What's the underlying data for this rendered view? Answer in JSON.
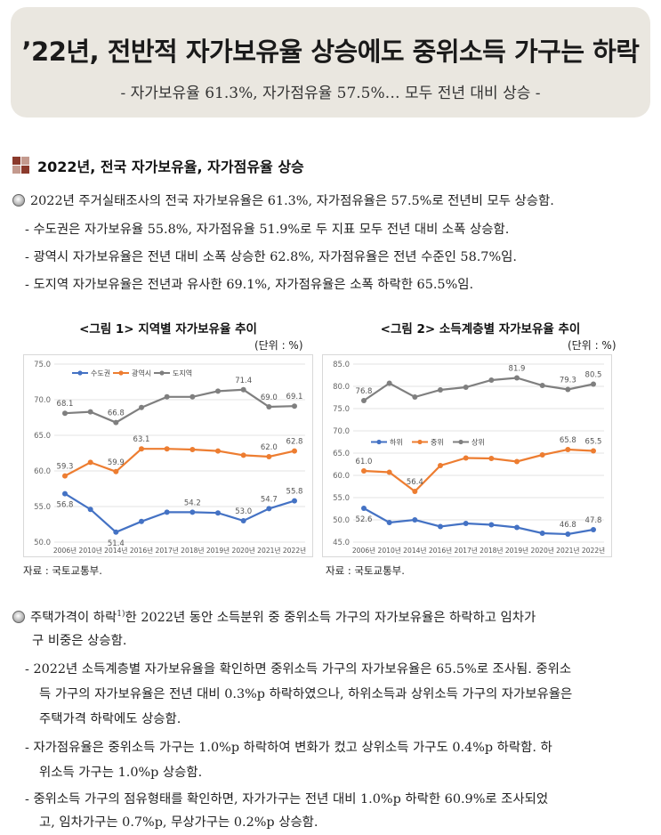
{
  "header": {
    "title": "’22년, 전반적 자가보유율 상승에도 중위소득 가구는 하락",
    "subtitle": "- 자가보유율 61.3%, 자가점유율 57.5%… 모두 전년 대비 상승 -"
  },
  "section1": {
    "title": "2022년, 전국 자가보유율, 자가점유율 상승",
    "bullet": "2022년 주거실태조사의 전국 자가보유율은 61.3%, 자가점유율은 57.5%로 전년비 모두 상승함.",
    "items": [
      "수도권은 자가보유율 55.8%, 자가점유율 51.9%로 두 지표 모두 전년 대비 소폭 상승함.",
      "광역시 자가보유율은 전년 대비 소폭 상승한 62.8%, 자가점유율은 전년 수준인 58.7%임.",
      "도지역 자가보유율은 전년과 유사한 69.1%, 자가점유율은 소폭 하락한 65.5%임."
    ]
  },
  "chart1": {
    "heading": "<그림 1> 지역별 자가보유율 추이",
    "unit": "(단위 : %)",
    "source": "자료 : 국토교통부."
  },
  "chart2": {
    "heading": "<그림 2> 소득계층별 자가보유율 추이",
    "unit": "(단위 : %)",
    "source": "자료 : 국토교통부."
  },
  "section2": {
    "bullet_line1_a": "주택가격이 하락",
    "bullet_footnote": "1)",
    "bullet_line1_b": "한 2022년 동안 소득분위 중 중위소득 가구의 자가보유율은 하락하고 임차가",
    "bullet_line2": "구 비중은 상승함.",
    "item1_line1": "2022년 소득계층별 자가보유율을 확인하면 중위소득 가구의 자가보유율은 65.5%로 조사됨. 중위소",
    "item1_line2": "득 가구의 자가보유율은 전년 대비 0.3%p 하락하였으나, 하위소득과 상위소득 가구의 자가보유율은",
    "item1_line3": "주택가격 하락에도 상승함.",
    "item2_line1": "자가점유율은 중위소득 가구는 1.0%p 하락하여 변화가 컸고 상위소득 가구도 0.4%p 하락함. 하",
    "item2_line2": "위소득 가구는 1.0%p 상승함.",
    "item3_line1": "중위소득 가구의 점유형태를 확인하면, 자가가구는 전년 대비 1.0%p 하락한 60.9%로 조사되었",
    "item3_line2": "고, 임차가구는 0.7%p, 무상가구는 0.2%p 상승함."
  },
  "chart_data": [
    {
      "type": "line",
      "title": "<그림 1> 지역별 자가보유율 추이",
      "unit": "(단위 : %)",
      "categories": [
        "2006년",
        "2010년",
        "2014년",
        "2016년",
        "2017년",
        "2018년",
        "2019년",
        "2020년",
        "2021년",
        "2022년"
      ],
      "ylim": [
        50.0,
        75.0
      ],
      "yticks": [
        "50.0",
        "55.0",
        "60.0",
        "65.0",
        "70.0",
        "75.0"
      ],
      "grid": true,
      "legend": "top-left",
      "series": [
        {
          "name": "수도권",
          "color": "#4472c4",
          "values": [
            56.8,
            54.6,
            51.4,
            52.9,
            54.2,
            54.2,
            54.1,
            53.0,
            54.7,
            55.8
          ],
          "labels": {
            "0": "56.8",
            "2": "51.4",
            "5": "54.2",
            "7": "53.0",
            "8": "54.7",
            "9": "55.8"
          }
        },
        {
          "name": "광역시",
          "color": "#ed7d31",
          "values": [
            59.3,
            61.2,
            59.9,
            63.1,
            63.1,
            63.0,
            62.8,
            62.2,
            62.0,
            62.8
          ],
          "labels": {
            "0": "59.3",
            "2": "59.9",
            "3": "63.1",
            "8": "62.0",
            "9": "62.8"
          }
        },
        {
          "name": "도지역",
          "color": "#7f7f7f",
          "values": [
            68.1,
            68.3,
            66.8,
            68.9,
            70.4,
            70.4,
            71.2,
            71.4,
            69.0,
            69.1
          ],
          "labels": {
            "0": "68.1",
            "2": "66.8",
            "7": "71.4",
            "8": "69.0",
            "9": "69.1"
          }
        }
      ]
    },
    {
      "type": "line",
      "title": "<그림 2> 소득계층별 자가보유율 추이",
      "unit": "(단위 : %)",
      "categories": [
        "2006년",
        "2010년",
        "2014년",
        "2016년",
        "2017년",
        "2018년",
        "2019년",
        "2020년",
        "2021년",
        "2022년"
      ],
      "ylim": [
        45.0,
        85.0
      ],
      "yticks": [
        "45.0",
        "50.0",
        "55.0",
        "60.0",
        "65.0",
        "70.0",
        "75.0",
        "80.0",
        "85.0"
      ],
      "grid": true,
      "legend": "middle-left",
      "series": [
        {
          "name": "하위",
          "color": "#4472c4",
          "values": [
            52.6,
            49.4,
            50.0,
            48.5,
            49.2,
            48.9,
            48.3,
            47.0,
            46.8,
            47.8
          ],
          "labels": {
            "0": "52.6",
            "8": "46.8",
            "9": "47.8"
          }
        },
        {
          "name": "중위",
          "color": "#ed7d31",
          "values": [
            61.0,
            60.7,
            56.4,
            62.2,
            63.9,
            63.8,
            63.1,
            64.6,
            65.8,
            65.5
          ],
          "labels": {
            "0": "61.0",
            "2": "56.4",
            "8": "65.8",
            "9": "65.5"
          }
        },
        {
          "name": "상위",
          "color": "#7f7f7f",
          "values": [
            76.8,
            80.7,
            77.6,
            79.2,
            79.8,
            81.4,
            81.9,
            80.2,
            79.3,
            80.5
          ],
          "labels": {
            "0": "76.8",
            "6": "81.9",
            "8": "79.3",
            "9": "80.5"
          }
        }
      ]
    }
  ]
}
